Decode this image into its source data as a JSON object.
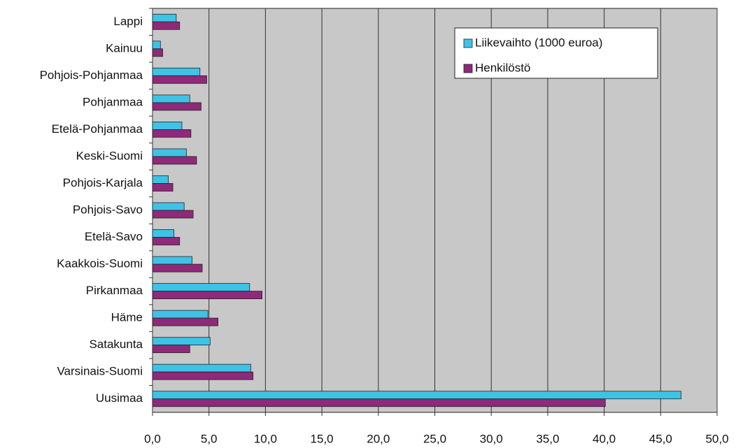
{
  "chart_data": {
    "type": "bar",
    "orientation": "horizontal",
    "categories": [
      "Lappi",
      "Kainuu",
      "Pohjois-Pohjanmaa",
      "Pohjanmaa",
      "Etelä-Pohjanmaa",
      "Keski-Suomi",
      "Pohjois-Karjala",
      "Pohjois-Savo",
      "Etelä-Savo",
      "Kaakkois-Suomi",
      "Pirkanmaa",
      "Häme",
      "Satakunta",
      "Varsinais-Suomi",
      "Uusimaa"
    ],
    "series": [
      {
        "name": "Liikevaihto (1000 euroa)",
        "color": "#3ec3e6",
        "values": [
          2.1,
          0.7,
          4.2,
          3.3,
          2.6,
          3.0,
          1.4,
          2.8,
          1.9,
          3.5,
          8.6,
          4.9,
          5.1,
          8.7,
          46.8
        ]
      },
      {
        "name": "Henkilöstö",
        "color": "#8e2a79",
        "values": [
          2.4,
          0.9,
          4.8,
          4.3,
          3.4,
          3.9,
          1.8,
          3.6,
          2.4,
          4.4,
          9.7,
          5.8,
          3.3,
          8.9,
          40.1
        ]
      }
    ],
    "xlim": [
      0,
      50
    ],
    "xticks": [
      {
        "value": 0,
        "label": "0,0"
      },
      {
        "value": 5,
        "label": "5,0"
      },
      {
        "value": 10,
        "label": "10,0"
      },
      {
        "value": 15,
        "label": "15,0"
      },
      {
        "value": 20,
        "label": "20,0"
      },
      {
        "value": 25,
        "label": "25,0"
      },
      {
        "value": 30,
        "label": "30,0"
      },
      {
        "value": 35,
        "label": "35,0"
      },
      {
        "value": 40,
        "label": "40,0"
      },
      {
        "value": 45,
        "label": "45,0"
      },
      {
        "value": 50,
        "label": "50,0"
      }
    ],
    "grid": true,
    "legend": "upper right",
    "background": "#c8c8c8"
  }
}
